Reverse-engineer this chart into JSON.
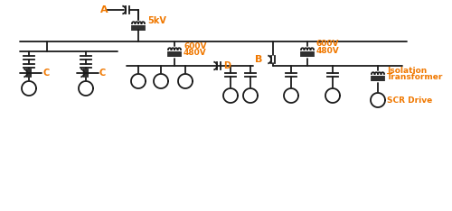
{
  "orange": "#F07800",
  "dark": "#1a1a1a",
  "bg": "#ffffff",
  "lw": 1.3,
  "fig_w": 5.0,
  "fig_h": 2.34,
  "dpi": 100,
  "xlim": [
    0,
    500
  ],
  "ylim": [
    0,
    234
  ]
}
